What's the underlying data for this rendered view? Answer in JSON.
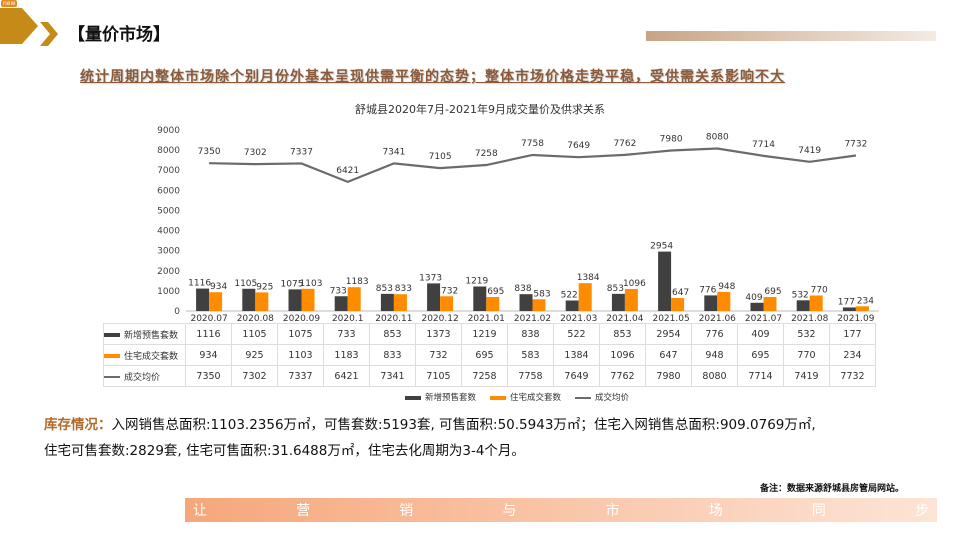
{
  "badge": "new",
  "header": {
    "title": "【量价市场】",
    "subtitle": "统计周期内整体市场除个别月份外基本呈现供需平衡的态势；整体市场价格走势平稳，受供需关系影响不大"
  },
  "chart_data": {
    "type": "bar+line",
    "title": "舒城县2020年7月-2021年9月成交量价及供求关系",
    "categories": [
      "2020.07",
      "2020.08",
      "2020.09",
      "2020.1",
      "2020.11",
      "2020.12",
      "2021.01",
      "2021.02",
      "2021.03",
      "2021.04",
      "2021.05",
      "2021.06",
      "2021.07",
      "2021.08",
      "2021.09"
    ],
    "ylim": [
      0,
      9000
    ],
    "yticks": [
      "0",
      "1000",
      "2000",
      "3000",
      "4000",
      "5000",
      "6000",
      "7000",
      "8000",
      "9000"
    ],
    "series": [
      {
        "name": "新增预售套数",
        "type": "bar",
        "color": "#404040",
        "values": [
          1116,
          1105,
          1075,
          733,
          853,
          1373,
          1219,
          838,
          522,
          853,
          2954,
          776,
          409,
          532,
          177
        ]
      },
      {
        "name": "住宅成交套数",
        "type": "bar",
        "color": "#ff8c00",
        "values": [
          934,
          925,
          1103,
          1183,
          833,
          732,
          695,
          583,
          1384,
          1096,
          647,
          948,
          695,
          770,
          234
        ]
      },
      {
        "name": "成交均价",
        "type": "line",
        "color": "#6b6b6b",
        "values": [
          7350,
          7302,
          7337,
          6421,
          7341,
          7105,
          7258,
          7758,
          7649,
          7762,
          7980,
          8080,
          7714,
          7419,
          7732
        ]
      }
    ],
    "legend": "bottom"
  },
  "inventory": {
    "label": "库存情况：",
    "line1": "入网销售总面积:1103.2356万㎡，可售套数:5193套, 可售面积:50.5943万㎡；住宅入网销售总面积:909.0769万㎡,",
    "line2": "住宅可售套数:2829套, 住宅可售面积:31.6488万㎡，住宅去化周期为3-4个月。"
  },
  "note": "备注：数据来源舒城县房管局网站。",
  "slogan": [
    "让",
    "营",
    "销",
    "与",
    "市",
    "场",
    "同",
    "步"
  ]
}
